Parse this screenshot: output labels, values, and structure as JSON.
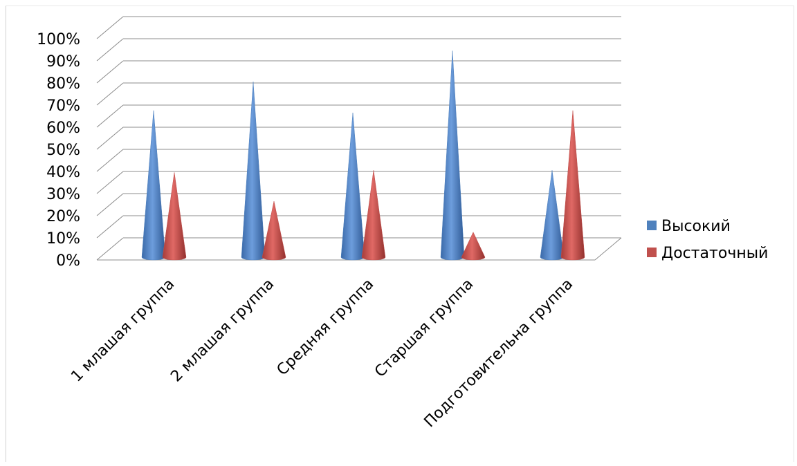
{
  "chart_data": {
    "type": "bar",
    "shape": "cone",
    "title": "",
    "xlabel": "",
    "ylabel": "",
    "ylim": [
      0,
      100
    ],
    "y_ticks": [
      "0%",
      "10%",
      "20%",
      "30%",
      "40%",
      "50%",
      "60%",
      "70%",
      "80%",
      "90%",
      "100%"
    ],
    "categories": [
      "1 млашая группа",
      "2 млашая группа",
      "Средняя группа",
      "Старшая группа",
      "Подготовительна группа"
    ],
    "series": [
      {
        "name": "Высокий",
        "color": "#4f81bd",
        "values": [
          66,
          79,
          65,
          93,
          39
        ]
      },
      {
        "name": "Достаточный",
        "color": "#c0504d",
        "values": [
          38,
          25,
          39,
          11,
          66
        ]
      }
    ],
    "legend_position": "right",
    "grid": true
  }
}
